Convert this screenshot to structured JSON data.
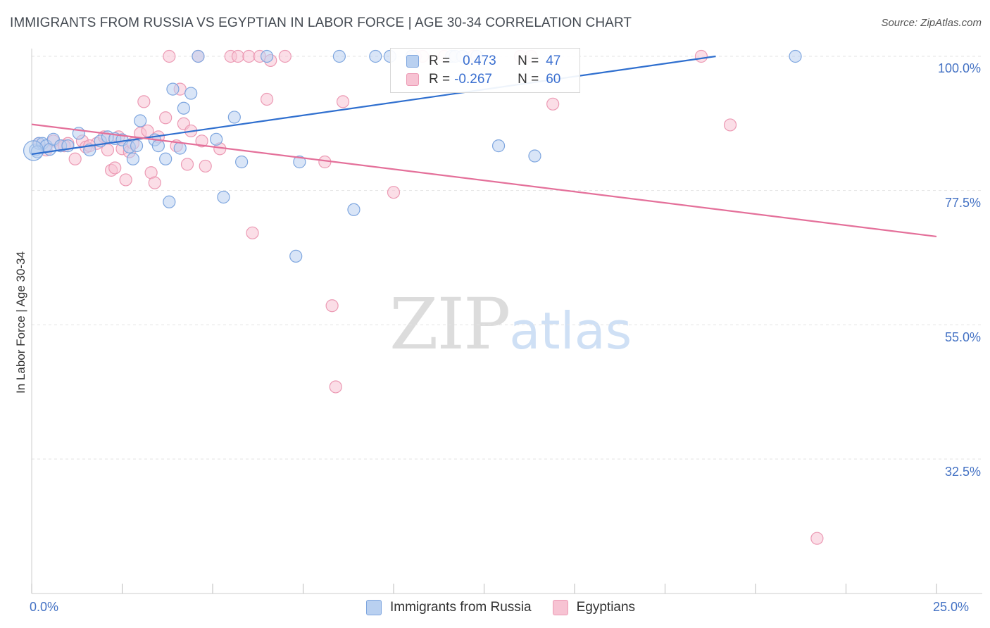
{
  "title": "IMMIGRANTS FROM RUSSIA VS EGYPTIAN IN LABOR FORCE | AGE 30-34 CORRELATION CHART",
  "source": "Source: ZipAtlas.com",
  "watermark": {
    "zip": "ZIP",
    "atlas": "atlas"
  },
  "legend": {
    "r_label": "R =",
    "n_label": "N =",
    "series1": {
      "r": "0.473",
      "n": "47"
    },
    "series2": {
      "r": "-0.267",
      "n": "60"
    }
  },
  "colors": {
    "blue_fill": "#b9d0f0",
    "blue_stroke": "#7ea6df",
    "blue_line": "#2f6fcf",
    "pink_fill": "#f7c3d3",
    "pink_stroke": "#ec9ab4",
    "pink_line": "#e4709a"
  },
  "chart_data": {
    "type": "scatter",
    "title": "IMMIGRANTS FROM RUSSIA VS EGYPTIAN IN LABOR FORCE | AGE 30-34 CORRELATION CHART",
    "xlabel": "",
    "ylabel": "In Labor Force | Age 30-34",
    "xlim": [
      0,
      25
    ],
    "ylim": [
      10,
      102
    ],
    "y_ticks": [
      100,
      77.5,
      55,
      32.5
    ],
    "y_tick_labels": [
      "100.0%",
      "77.5%",
      "55.0%",
      "32.5%"
    ],
    "x_tick_labels": [
      "0.0%",
      "25.0%"
    ],
    "legend_position": "bottom",
    "series": [
      {
        "name": "Immigrants from Russia",
        "color": "blue",
        "trend": [
          [
            0,
            83.6
          ],
          [
            18.9,
            100.0
          ]
        ],
        "points": [
          [
            0.1,
            84.3
          ],
          [
            0.2,
            85.4
          ],
          [
            0.3,
            85.4
          ],
          [
            0.4,
            85.0
          ],
          [
            0.5,
            84.4
          ],
          [
            0.6,
            86.1
          ],
          [
            0.8,
            85.0
          ],
          [
            1.0,
            85.0
          ],
          [
            1.3,
            87.1
          ],
          [
            1.6,
            84.3
          ],
          [
            1.9,
            85.8
          ],
          [
            2.1,
            86.5
          ],
          [
            2.3,
            86.2
          ],
          [
            2.5,
            86.0
          ],
          [
            2.7,
            84.8
          ],
          [
            2.8,
            82.8
          ],
          [
            3.0,
            89.2
          ],
          [
            3.4,
            86.0
          ],
          [
            3.5,
            85.0
          ],
          [
            3.7,
            82.8
          ],
          [
            3.8,
            75.6
          ],
          [
            3.9,
            94.5
          ],
          [
            4.1,
            84.6
          ],
          [
            4.2,
            91.3
          ],
          [
            4.4,
            93.8
          ],
          [
            4.6,
            100.0
          ],
          [
            5.1,
            86.1
          ],
          [
            5.3,
            76.4
          ],
          [
            5.6,
            89.8
          ],
          [
            5.8,
            82.3
          ],
          [
            6.5,
            100.0
          ],
          [
            7.4,
            82.3
          ],
          [
            7.3,
            66.5
          ],
          [
            8.5,
            100.0
          ],
          [
            8.9,
            74.3
          ],
          [
            9.5,
            100.0
          ],
          [
            9.9,
            100.0
          ],
          [
            10.5,
            100.0
          ],
          [
            11.6,
            100.0
          ],
          [
            11.7,
            100.0
          ],
          [
            11.9,
            100.0
          ],
          [
            12.3,
            100.0
          ],
          [
            12.9,
            85.0
          ],
          [
            13.9,
            83.3
          ],
          [
            21.1,
            100.0
          ],
          [
            2.9,
            85.0
          ],
          [
            0.15,
            84.0
          ]
        ]
      },
      {
        "name": "Egyptians",
        "color": "pink",
        "trend": [
          [
            0,
            88.6
          ],
          [
            25,
            69.8
          ]
        ],
        "points": [
          [
            0.2,
            85.4
          ],
          [
            0.4,
            84.3
          ],
          [
            0.6,
            85.8
          ],
          [
            0.8,
            85.0
          ],
          [
            1.0,
            85.4
          ],
          [
            1.2,
            82.8
          ],
          [
            1.4,
            85.8
          ],
          [
            1.5,
            84.8
          ],
          [
            1.8,
            85.4
          ],
          [
            2.0,
            86.5
          ],
          [
            2.1,
            84.3
          ],
          [
            2.2,
            80.9
          ],
          [
            2.3,
            81.3
          ],
          [
            2.4,
            86.5
          ],
          [
            2.5,
            84.5
          ],
          [
            2.6,
            79.3
          ],
          [
            2.7,
            84.0
          ],
          [
            2.8,
            85.4
          ],
          [
            3.0,
            87.1
          ],
          [
            3.1,
            92.4
          ],
          [
            3.2,
            87.5
          ],
          [
            3.3,
            80.5
          ],
          [
            3.4,
            78.8
          ],
          [
            3.5,
            86.5
          ],
          [
            3.7,
            89.7
          ],
          [
            3.8,
            100.0
          ],
          [
            4.0,
            85.0
          ],
          [
            4.1,
            94.5
          ],
          [
            4.2,
            88.7
          ],
          [
            4.3,
            81.9
          ],
          [
            4.4,
            87.5
          ],
          [
            4.6,
            100.0
          ],
          [
            4.7,
            85.8
          ],
          [
            4.8,
            81.6
          ],
          [
            5.2,
            84.5
          ],
          [
            5.5,
            100.0
          ],
          [
            5.7,
            100.0
          ],
          [
            6.0,
            100.0
          ],
          [
            6.1,
            70.4
          ],
          [
            6.3,
            100.0
          ],
          [
            6.5,
            92.8
          ],
          [
            6.6,
            99.3
          ],
          [
            7.0,
            100.0
          ],
          [
            8.1,
            82.3
          ],
          [
            8.3,
            58.2
          ],
          [
            8.4,
            44.6
          ],
          [
            8.6,
            92.4
          ],
          [
            10.0,
            77.2
          ],
          [
            10.6,
            100.0
          ],
          [
            10.8,
            100.0
          ],
          [
            11.4,
            100.0
          ],
          [
            12.2,
            100.0
          ],
          [
            13.5,
            100.0
          ],
          [
            13.8,
            100.0
          ],
          [
            14.4,
            92.0
          ],
          [
            18.5,
            100.0
          ],
          [
            19.3,
            88.5
          ],
          [
            21.7,
            19.2
          ],
          [
            1.6,
            85.0
          ],
          [
            0.9,
            85.0
          ]
        ]
      }
    ]
  }
}
